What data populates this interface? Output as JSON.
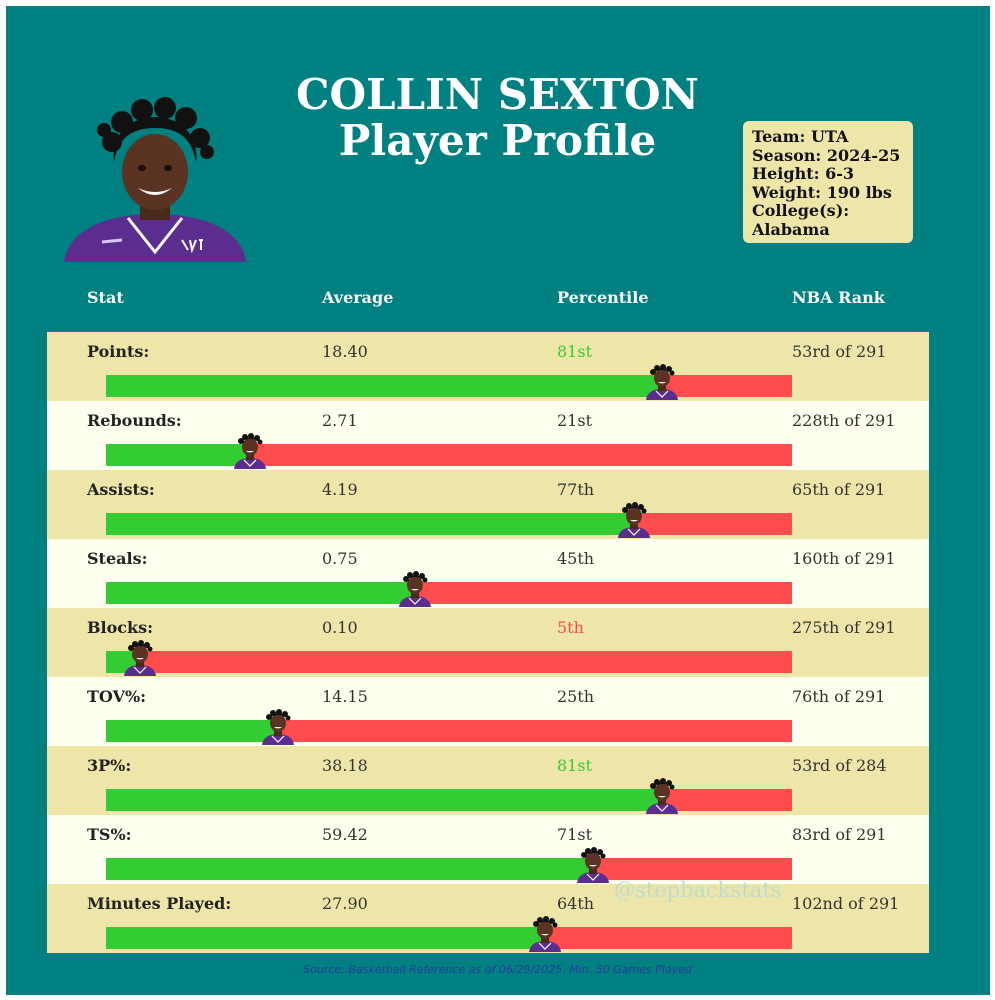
{
  "header": {
    "title_line1": "COLLIN SEXTON",
    "title_line2": "Player Profile"
  },
  "info": {
    "team": "Team: UTA",
    "season": "Season: 2024-25",
    "height": "Height: 6-3",
    "weight": "Weight: 190 lbs",
    "college_label": "College(s):",
    "college_value": "Alabama"
  },
  "columns": {
    "stat": "Stat",
    "average": "Average",
    "percentile": "Percentile",
    "rank": "NBA Rank"
  },
  "chart_data": {
    "type": "bar",
    "title": "Player Profile",
    "xlim": [
      0,
      100
    ],
    "colors": {
      "fill": "#33cc33",
      "remainder": "#ff4c4c",
      "high_text": "#33cc33",
      "low_text": "#ff4c4c"
    },
    "rows": [
      {
        "label": "Points:",
        "average": "18.40",
        "percentile_label": "81st",
        "percentile": 81,
        "rank": "53rd of 291",
        "highlight": "high"
      },
      {
        "label": "Rebounds:",
        "average": "2.71",
        "percentile_label": "21st",
        "percentile": 21,
        "rank": "228th of 291",
        "highlight": "none"
      },
      {
        "label": "Assists:",
        "average": "4.19",
        "percentile_label": "77th",
        "percentile": 77,
        "rank": "65th of 291",
        "highlight": "none"
      },
      {
        "label": "Steals:",
        "average": "0.75",
        "percentile_label": "45th",
        "percentile": 45,
        "rank": "160th of 291",
        "highlight": "none"
      },
      {
        "label": "Blocks:",
        "average": "0.10",
        "percentile_label": "5th",
        "percentile": 5,
        "rank": "275th of 291",
        "highlight": "low"
      },
      {
        "label": "TOV%:",
        "average": "14.15",
        "percentile_label": "25th",
        "percentile": 25,
        "rank": "76th of 291",
        "highlight": "none"
      },
      {
        "label": "3P%:",
        "average": "38.18",
        "percentile_label": "81st",
        "percentile": 81,
        "rank": "53rd of 284",
        "highlight": "high"
      },
      {
        "label": "TS%:",
        "average": "59.42",
        "percentile_label": "71st",
        "percentile": 71,
        "rank": "83rd of 291",
        "highlight": "none"
      },
      {
        "label": "Minutes Played:",
        "average": "27.90",
        "percentile_label": "64th",
        "percentile": 64,
        "rank": "102nd of 291",
        "highlight": "none"
      }
    ]
  },
  "watermark": "@stepbackstats",
  "source": "Source: Basketball Reference as of 06/29/2025. Min. 50 Games Played"
}
